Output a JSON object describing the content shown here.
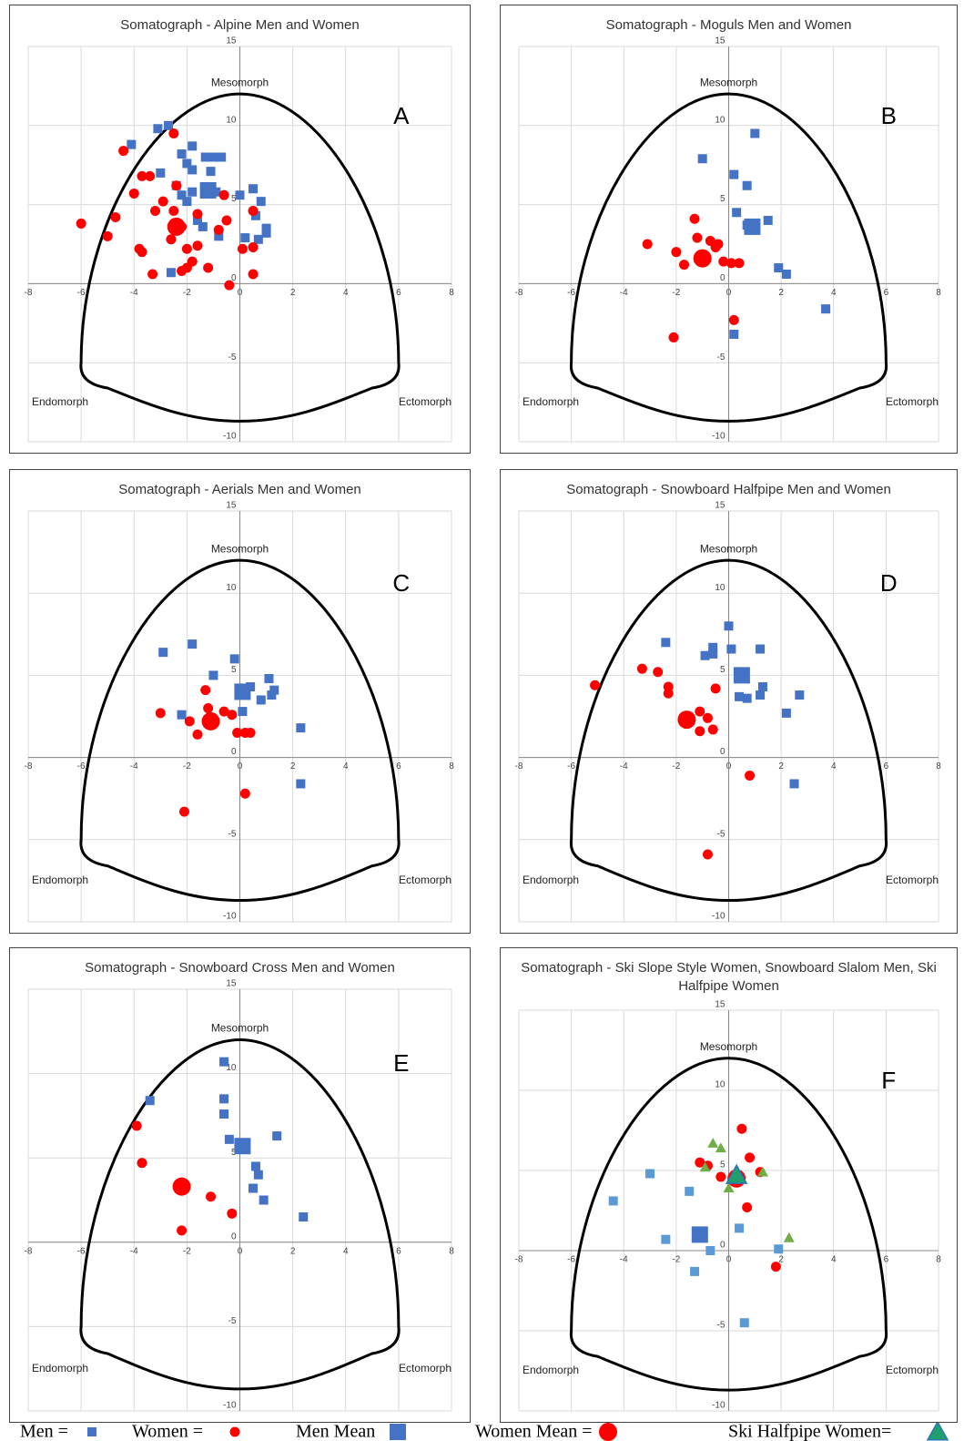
{
  "chart_data": [
    {
      "type": "scatter",
      "title": "Somatograph  - Alpine Men and Women",
      "letter": "A",
      "labels": {
        "top": "Mesomorph",
        "left": "Endomorph",
        "right": "Ectomorph"
      },
      "xlim": [
        -8,
        8
      ],
      "ylim": [
        -10,
        15
      ],
      "xticks": [
        -8,
        -6,
        -4,
        -2,
        0,
        2,
        4,
        6,
        8
      ],
      "yticks": [
        -10,
        -5,
        0,
        5,
        10,
        15
      ],
      "grid": true,
      "series": [
        {
          "marker": "square",
          "size": "small",
          "color": "#4472c4",
          "x": [
            -4.1,
            -3.1,
            -2.7,
            -3.0,
            -2.2,
            -2.0,
            -1.8,
            -1.8,
            -1.3,
            -1.0,
            -0.7,
            -1.1,
            -2.4,
            -2.2,
            -1.8,
            -1.2,
            -0.9,
            -2.0,
            -1.6,
            -1.4,
            -0.8,
            0.0,
            0.5,
            0.8,
            0.6,
            1.0,
            1.0,
            0.2,
            0.7,
            -2.6
          ],
          "y": [
            8.8,
            9.8,
            10.0,
            7.0,
            8.2,
            7.6,
            8.7,
            7.2,
            8.0,
            8.0,
            8.0,
            7.1,
            6.2,
            5.6,
            5.8,
            6.0,
            5.8,
            5.2,
            4.0,
            3.6,
            3.0,
            5.6,
            6.0,
            5.2,
            4.3,
            3.5,
            3.2,
            2.9,
            2.8,
            0.7
          ]
        },
        {
          "marker": "circle",
          "size": "small",
          "color": "#ff0000",
          "x": [
            -6.0,
            -5.0,
            -4.7,
            -4.4,
            -4.0,
            -3.7,
            -3.4,
            -3.2,
            -2.9,
            -2.5,
            -2.5,
            -2.4,
            -2.2,
            -2.0,
            -1.8,
            -2.6,
            -1.6,
            -1.6,
            -2.2,
            -2.0,
            -1.2,
            -0.8,
            -0.5,
            -0.6,
            0.5,
            0.1,
            0.5,
            0.5,
            -0.4,
            -3.3,
            -3.8,
            -3.7
          ],
          "y": [
            3.8,
            3.0,
            4.2,
            8.4,
            5.7,
            6.8,
            6.8,
            4.6,
            5.2,
            9.5,
            4.6,
            6.2,
            3.6,
            2.2,
            1.4,
            2.8,
            4.4,
            2.4,
            0.8,
            1.0,
            1.0,
            3.4,
            4.0,
            5.6,
            2.3,
            2.2,
            4.6,
            0.6,
            -0.1,
            0.6,
            2.2,
            2.0
          ]
        },
        {
          "marker": "square",
          "size": "large",
          "color": "#4472c4",
          "x": [
            -1.2
          ],
          "y": [
            5.9
          ]
        },
        {
          "marker": "circle",
          "size": "large",
          "color": "#ff0000",
          "x": [
            -2.4
          ],
          "y": [
            3.6
          ]
        }
      ]
    },
    {
      "type": "scatter",
      "title": "Somatograph  - Moguls Men and Women",
      "letter": "B",
      "labels": {
        "top": "Mesomorph",
        "left": "Endomorph",
        "right": "Ectomorph"
      },
      "xlim": [
        -8,
        8
      ],
      "ylim": [
        -10,
        15
      ],
      "xticks": [
        -8,
        -6,
        -4,
        -2,
        0,
        2,
        4,
        6,
        8
      ],
      "yticks": [
        -10,
        -5,
        0,
        5,
        10,
        15
      ],
      "grid": true,
      "series": [
        {
          "marker": "square",
          "size": "small",
          "color": "#4472c4",
          "x": [
            -1.0,
            1.0,
            0.2,
            0.7,
            0.3,
            0.7,
            1.0,
            1.5,
            0.9,
            1.9,
            2.2,
            3.7,
            0.2
          ],
          "y": [
            7.9,
            9.5,
            6.9,
            6.2,
            4.5,
            3.7,
            3.8,
            4.0,
            3.5,
            1.0,
            0.6,
            -1.6,
            -3.2
          ]
        },
        {
          "marker": "circle",
          "size": "small",
          "color": "#ff0000",
          "x": [
            -3.1,
            -2.0,
            -1.7,
            -1.3,
            -1.2,
            -0.7,
            -0.5,
            -0.4,
            -0.2,
            0.1,
            0.4,
            0.2,
            -2.1
          ],
          "y": [
            2.5,
            2.0,
            1.2,
            4.1,
            2.9,
            2.7,
            2.3,
            2.5,
            1.4,
            1.3,
            1.3,
            -2.3,
            -3.4
          ]
        },
        {
          "marker": "square",
          "size": "large",
          "color": "#4472c4",
          "x": [
            0.9
          ],
          "y": [
            3.6
          ]
        },
        {
          "marker": "circle",
          "size": "large",
          "color": "#ff0000",
          "x": [
            -1.0
          ],
          "y": [
            1.6
          ]
        }
      ]
    },
    {
      "type": "scatter",
      "title": "Somatograph  - Aerials Men and Women",
      "letter": "C",
      "labels": {
        "top": "Mesomorph",
        "left": "Endomorph",
        "right": "Ectomorph"
      },
      "xlim": [
        -8,
        8
      ],
      "ylim": [
        -10,
        15
      ],
      "xticks": [
        -8,
        -6,
        -4,
        -2,
        0,
        2,
        4,
        6,
        8
      ],
      "yticks": [
        -10,
        -5,
        0,
        5,
        10,
        15
      ],
      "grid": true,
      "series": [
        {
          "marker": "square",
          "size": "small",
          "color": "#4472c4",
          "x": [
            -2.9,
            -1.8,
            -1.0,
            -0.2,
            0.0,
            0.2,
            0.4,
            0.8,
            1.1,
            1.2,
            1.3,
            -2.2,
            0.1,
            2.3,
            2.3
          ],
          "y": [
            6.4,
            6.9,
            5.0,
            6.0,
            4.1,
            3.8,
            4.3,
            3.5,
            4.8,
            3.8,
            4.1,
            2.6,
            2.8,
            1.8,
            -1.6
          ]
        },
        {
          "marker": "circle",
          "size": "small",
          "color": "#ff0000",
          "x": [
            -3.0,
            -1.9,
            -1.6,
            -1.3,
            -1.2,
            -0.6,
            -0.3,
            -0.1,
            0.2,
            0.4,
            0.2,
            -2.1
          ],
          "y": [
            2.7,
            2.2,
            1.4,
            4.1,
            3.0,
            2.8,
            2.6,
            1.5,
            1.5,
            1.5,
            -2.2,
            -3.3
          ]
        },
        {
          "marker": "square",
          "size": "large",
          "color": "#4472c4",
          "x": [
            0.1
          ],
          "y": [
            4.0
          ]
        },
        {
          "marker": "circle",
          "size": "large",
          "color": "#ff0000",
          "x": [
            -1.1
          ],
          "y": [
            2.2
          ]
        }
      ]
    },
    {
      "type": "scatter",
      "title": "Somatograph - Snowboard Halfpipe Men and Women",
      "letter": "D",
      "labels": {
        "top": "Mesomorph",
        "left": "Endomorph",
        "right": "Ectomorph"
      },
      "xlim": [
        -8,
        8
      ],
      "ylim": [
        -10,
        15
      ],
      "xticks": [
        -8,
        -6,
        -4,
        -2,
        0,
        2,
        4,
        6,
        8
      ],
      "yticks": [
        -10,
        -5,
        0,
        5,
        10,
        15
      ],
      "grid": true,
      "series": [
        {
          "marker": "square",
          "size": "small",
          "color": "#4472c4",
          "x": [
            -2.4,
            -0.9,
            -0.6,
            -0.6,
            0.0,
            0.1,
            1.2,
            0.4,
            0.7,
            1.2,
            1.3,
            2.2,
            2.7,
            2.5
          ],
          "y": [
            7.0,
            6.2,
            6.3,
            6.7,
            8.0,
            6.6,
            6.6,
            3.7,
            3.6,
            3.8,
            4.3,
            2.7,
            3.8,
            -1.6
          ]
        },
        {
          "marker": "circle",
          "size": "small",
          "color": "#ff0000",
          "x": [
            -5.1,
            -3.3,
            -2.7,
            -2.3,
            -2.3,
            -1.1,
            -1.1,
            -0.8,
            -0.6,
            -0.5,
            0.8,
            -0.8
          ],
          "y": [
            4.4,
            5.4,
            5.2,
            3.9,
            4.3,
            2.8,
            1.6,
            2.4,
            1.7,
            4.2,
            -1.1,
            -5.9
          ]
        },
        {
          "marker": "square",
          "size": "large",
          "color": "#4472c4",
          "x": [
            0.5
          ],
          "y": [
            5.0
          ]
        },
        {
          "marker": "circle",
          "size": "large",
          "color": "#ff0000",
          "x": [
            -1.6
          ],
          "y": [
            2.3
          ]
        }
      ]
    },
    {
      "type": "scatter",
      "title": "Somatograph - Snowboard Cross Men and Women",
      "letter": "E",
      "labels": {
        "top": "Mesomorph",
        "left": "Endomorph",
        "right": "Ectomorph"
      },
      "xlim": [
        -8,
        8
      ],
      "ylim": [
        -10,
        15
      ],
      "xticks": [
        -8,
        -6,
        -4,
        -2,
        0,
        2,
        4,
        6,
        8
      ],
      "yticks": [
        -10,
        -5,
        0,
        5,
        10,
        15
      ],
      "grid": true,
      "series": [
        {
          "marker": "square",
          "size": "small",
          "color": "#4472c4",
          "x": [
            -3.4,
            -0.6,
            -0.6,
            -0.6,
            -0.4,
            0.0,
            0.6,
            0.7,
            0.5,
            0.9,
            1.4,
            2.4
          ],
          "y": [
            8.4,
            10.7,
            8.5,
            7.6,
            6.1,
            5.8,
            4.5,
            4.0,
            3.2,
            2.5,
            6.3,
            1.5
          ]
        },
        {
          "marker": "circle",
          "size": "small",
          "color": "#ff0000",
          "x": [
            -3.9,
            -3.7,
            -1.1,
            -0.3,
            -2.2
          ],
          "y": [
            6.9,
            4.7,
            2.7,
            1.7,
            0.7
          ]
        },
        {
          "marker": "square",
          "size": "large",
          "color": "#4472c4",
          "x": [
            0.1
          ],
          "y": [
            5.7
          ]
        },
        {
          "marker": "circle",
          "size": "large",
          "color": "#ff0000",
          "x": [
            -2.2
          ],
          "y": [
            3.3
          ]
        }
      ]
    },
    {
      "type": "scatter",
      "title": "Somatograph - Ski Slope Style Women, Snowboard Slalom Men, Ski Halfpipe Women",
      "letter": "F",
      "labels": {
        "top": "Mesomorph",
        "left": "Endomorph",
        "right": "Ectomorph"
      },
      "xlim": [
        -8,
        8
      ],
      "ylim": [
        -10,
        15
      ],
      "xticks": [
        -8,
        -6,
        -4,
        -2,
        0,
        2,
        4,
        6,
        8
      ],
      "yticks": [
        -10,
        -5,
        0,
        5,
        10,
        15
      ],
      "grid": true,
      "series": [
        {
          "marker": "square",
          "size": "small",
          "color": "#5b9bd5",
          "x": [
            -4.4,
            -3.0,
            -1.5,
            -2.4,
            -0.7,
            -1.3,
            0.4,
            0.6,
            1.9
          ],
          "y": [
            3.1,
            4.8,
            3.7,
            0.7,
            0.0,
            -1.3,
            1.4,
            -4.5,
            0.1
          ]
        },
        {
          "marker": "circle",
          "size": "small",
          "color": "#ff0000",
          "x": [
            -1.1,
            -0.8,
            -0.3,
            0.5,
            0.8,
            0.7,
            1.2,
            1.8
          ],
          "y": [
            5.5,
            5.3,
            4.6,
            7.6,
            5.8,
            2.7,
            4.9,
            -1.0
          ]
        },
        {
          "marker": "triangle",
          "size": "small",
          "color": "#70ad47",
          "x": [
            -0.6,
            -0.3,
            -0.9,
            0.0,
            1.3,
            2.3
          ],
          "y": [
            6.7,
            6.4,
            5.2,
            3.9,
            4.9,
            0.8
          ]
        },
        {
          "marker": "square",
          "size": "large",
          "color": "#4472c4",
          "x": [
            -1.1
          ],
          "y": [
            1.0
          ]
        },
        {
          "marker": "circle",
          "size": "large",
          "color": "#ff0000",
          "x": [
            0.3
          ],
          "y": [
            4.5
          ]
        },
        {
          "marker": "triangle",
          "size": "large",
          "color": "#1f9e6e",
          "x": [
            0.3
          ],
          "y": [
            4.7
          ]
        }
      ]
    }
  ],
  "legend": [
    {
      "label": "Men =",
      "marker": "square",
      "color": "#4472c4"
    },
    {
      "label": "Women =",
      "marker": "circle",
      "color": "#ff0000"
    },
    {
      "label": "Men Mean",
      "marker": "square",
      "color": "#4472c4"
    },
    {
      "label": "Women Mean =",
      "marker": "circle",
      "color": "#ff0000"
    },
    {
      "label": "Ski Halfpipe Women=",
      "marker": "triangle",
      "color": "#1f9e6e"
    }
  ]
}
